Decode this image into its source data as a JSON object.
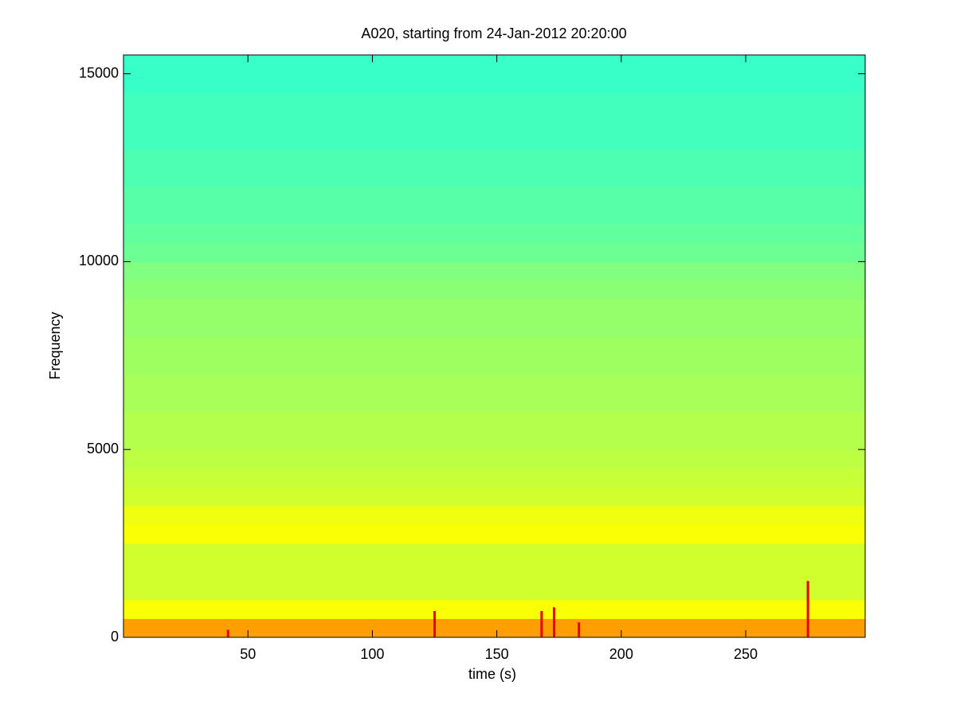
{
  "chart_data": {
    "type": "spectrogram",
    "title": "A020, starting from 24-Jan-2012 20:20:00",
    "x_label": "time (s)",
    "y_label": "Frequency",
    "xlim": [
      0,
      298
    ],
    "ylim": [
      0,
      15500
    ],
    "xticks": [
      50,
      100,
      150,
      200,
      250
    ],
    "yticks": [
      0,
      5000,
      10000,
      15000
    ],
    "colormap": "jet",
    "clim": [
      0,
      1
    ],
    "freq_bins": [
      0,
      500,
      1000,
      1500,
      2000,
      2500,
      3000,
      3500,
      4000,
      4500,
      5000,
      5500,
      6000,
      6500,
      7000,
      7500,
      8000,
      8500,
      9000,
      9500,
      10000,
      10500,
      11000,
      11500,
      12000,
      12500,
      13000,
      13500,
      14000,
      14500,
      15000,
      15500
    ],
    "levels": [
      0.72,
      0.62,
      0.58,
      0.58,
      0.58,
      0.62,
      0.61,
      0.58,
      0.57,
      0.56,
      0.55,
      0.55,
      0.54,
      0.54,
      0.53,
      0.53,
      0.52,
      0.52,
      0.51,
      0.5,
      0.48,
      0.47,
      0.46,
      0.46,
      0.45,
      0.45,
      0.44,
      0.44,
      0.44,
      0.43,
      0.43
    ],
    "bursts": {
      "x": [
        42,
        125,
        168,
        173,
        183,
        275
      ],
      "heights": [
        200,
        700,
        700,
        800,
        400,
        1500
      ],
      "level": 0.9
    }
  }
}
